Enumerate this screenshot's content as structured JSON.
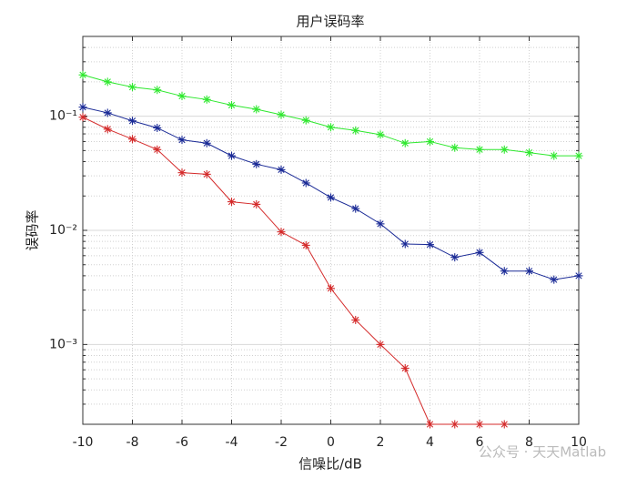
{
  "chart_data": {
    "type": "line",
    "title": "用户误码率",
    "x_label": "信噪比/dB",
    "y_label": "误码率",
    "x": [
      -10,
      -9,
      -8,
      -7,
      -6,
      -5,
      -4,
      -3,
      -2,
      -1,
      0,
      1,
      2,
      3,
      4,
      5,
      6,
      7,
      8,
      9,
      10
    ],
    "series": [
      {
        "color": "#2ee82e",
        "values": [
          0.23,
          0.2,
          0.18,
          0.17,
          0.15,
          0.14,
          0.125,
          0.115,
          0.103,
          0.092,
          0.08,
          0.075,
          0.069,
          0.058,
          0.06,
          0.053,
          0.051,
          0.051,
          0.048,
          0.045,
          0.045
        ]
      },
      {
        "color": "#1a2a96",
        "values": [
          0.12,
          0.107,
          0.091,
          0.079,
          0.062,
          0.058,
          0.045,
          0.038,
          0.034,
          0.026,
          0.0194,
          0.0155,
          0.0114,
          0.0076,
          0.0075,
          0.0058,
          0.0064,
          0.0044,
          0.0044,
          0.0037,
          0.004
        ]
      },
      {
        "color": "#d42a2a",
        "values": [
          0.098,
          0.077,
          0.063,
          0.051,
          0.032,
          0.031,
          0.0178,
          0.0169,
          0.0097,
          0.0074,
          0.0031,
          0.00164,
          0.001,
          0.00062,
          0.0002,
          0.0002,
          0.0002,
          0.0002,
          null,
          null,
          null
        ]
      }
    ],
    "xlim": [
      -10,
      10
    ],
    "xticks": [
      -10,
      -8,
      -6,
      -4,
      -2,
      0,
      2,
      4,
      6,
      8,
      10
    ],
    "ylim": [
      0.0002,
      0.5
    ],
    "y_scale": "log",
    "yticks": [
      {
        "value": 0.001,
        "label": "10⁻³"
      },
      {
        "value": 0.01,
        "label": "10⁻²"
      },
      {
        "value": 0.1,
        "label": "10⁻¹"
      }
    ],
    "grid": true,
    "minor_grid": true,
    "marker": "asterisk",
    "watermark": "公众号 · 天天Matlab"
  }
}
